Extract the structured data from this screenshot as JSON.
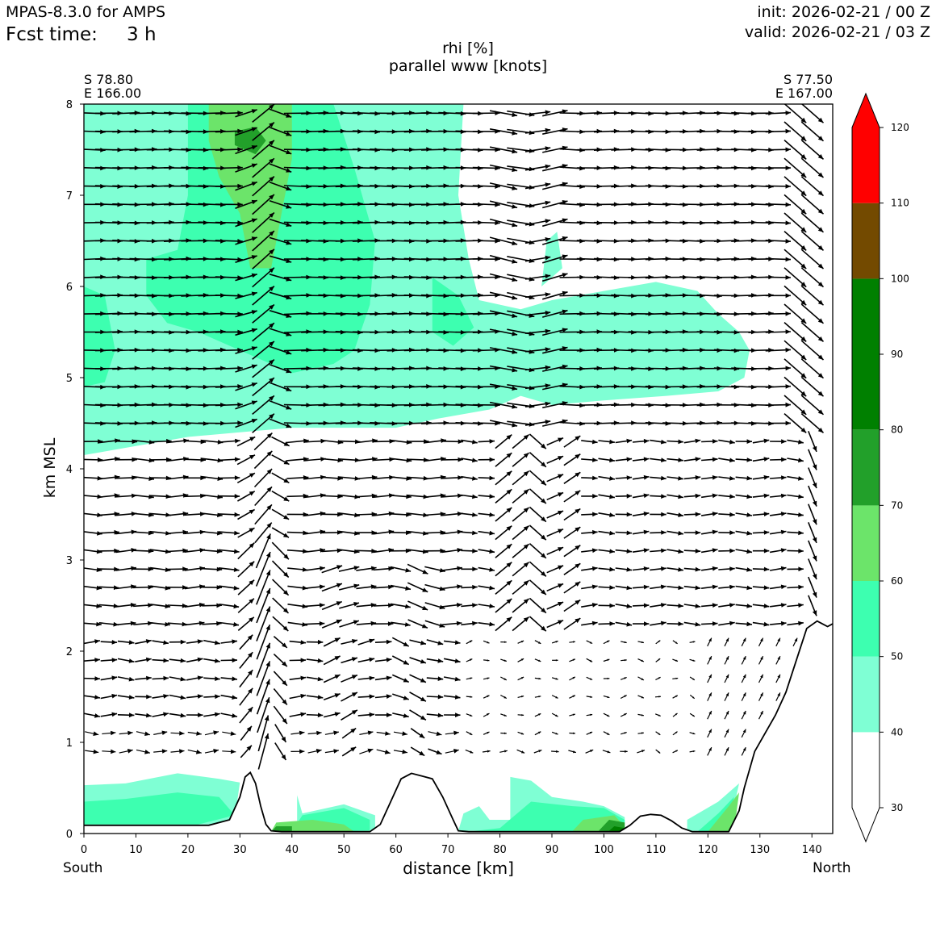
{
  "header": {
    "model": "MPAS-8.3.0 for AMPS",
    "fcst_label": "Fcst time:",
    "fcst_value": "3 h",
    "init": "init: 2026-02-21 / 00 Z",
    "valid": "valid: 2026-02-21 / 03 Z"
  },
  "chart_data": {
    "type": "heatmap",
    "title": "rhi [%]",
    "subtitle": "parallel www [knots]",
    "xlabel": "distance [km]",
    "ylabel": "km MSL",
    "xlim": [
      0,
      144
    ],
    "ylim": [
      0,
      8
    ],
    "x_ticks": [
      0,
      10,
      20,
      30,
      40,
      50,
      60,
      70,
      80,
      90,
      100,
      110,
      120,
      130,
      140
    ],
    "y_ticks": [
      0,
      1,
      2,
      3,
      4,
      5,
      6,
      7,
      8
    ],
    "endpoints": {
      "left": [
        "S 78.80",
        "E 166.00"
      ],
      "right": [
        "S 77.50",
        "E 167.00"
      ],
      "left_dir": "South",
      "right_dir": "North"
    },
    "colorbar": {
      "ticks": [
        30,
        40,
        50,
        60,
        70,
        80,
        90,
        100,
        110,
        120
      ],
      "bins": [
        {
          "from": 30,
          "to": 40,
          "color": "#ffffff"
        },
        {
          "from": 40,
          "to": 50,
          "color": "#7fffd4"
        },
        {
          "from": 50,
          "to": 60,
          "color": "#3dffb0"
        },
        {
          "from": 60,
          "to": 70,
          "color": "#6ce46a"
        },
        {
          "from": 70,
          "to": 80,
          "color": "#22a02a"
        },
        {
          "from": 80,
          "to": 100,
          "color": "#008000"
        },
        {
          "from": 100,
          "to": 110,
          "color": "#734a00"
        },
        {
          "from": 110,
          "to": 120,
          "color": "#ff0000"
        }
      ],
      "extend": "both",
      "under_color": "#ffffff",
      "over_color": "#ff0000"
    },
    "terrain": [
      [
        0,
        0.09
      ],
      [
        24,
        0.09
      ],
      [
        28,
        0.15
      ],
      [
        30,
        0.4
      ],
      [
        31,
        0.62
      ],
      [
        32,
        0.67
      ],
      [
        33,
        0.55
      ],
      [
        34,
        0.3
      ],
      [
        35,
        0.1
      ],
      [
        36,
        0.03
      ],
      [
        38,
        0.02
      ],
      [
        55,
        0.02
      ],
      [
        57,
        0.1
      ],
      [
        59,
        0.35
      ],
      [
        61,
        0.6
      ],
      [
        63,
        0.66
      ],
      [
        65,
        0.63
      ],
      [
        67,
        0.6
      ],
      [
        69,
        0.4
      ],
      [
        71,
        0.15
      ],
      [
        72,
        0.03
      ],
      [
        74,
        0.02
      ],
      [
        103,
        0.02
      ],
      [
        105,
        0.09
      ],
      [
        107,
        0.19
      ],
      [
        109,
        0.21
      ],
      [
        111,
        0.2
      ],
      [
        113,
        0.14
      ],
      [
        115,
        0.06
      ],
      [
        117,
        0.02
      ],
      [
        124,
        0.02
      ],
      [
        126,
        0.25
      ],
      [
        127,
        0.5
      ],
      [
        129,
        0.9
      ],
      [
        131,
        1.1
      ],
      [
        133,
        1.3
      ],
      [
        135,
        1.55
      ],
      [
        137,
        1.9
      ],
      [
        139,
        2.25
      ],
      [
        141,
        2.33
      ],
      [
        143,
        2.27
      ],
      [
        144,
        2.3
      ]
    ],
    "rhi_regions": [
      {
        "level": 40,
        "color": "#7fffd4",
        "polygon": [
          [
            0,
            8
          ],
          [
            73,
            8
          ],
          [
            72,
            7
          ],
          [
            74,
            6.3
          ],
          [
            76,
            5.85
          ],
          [
            84,
            5.75
          ],
          [
            90,
            5.85
          ],
          [
            100,
            5.95
          ],
          [
            110,
            6.05
          ],
          [
            118,
            5.95
          ],
          [
            122,
            5.7
          ],
          [
            126,
            5.5
          ],
          [
            128,
            5.3
          ],
          [
            127,
            5.0
          ],
          [
            122,
            4.85
          ],
          [
            112,
            4.8
          ],
          [
            100,
            4.75
          ],
          [
            90,
            4.7
          ],
          [
            84,
            4.8
          ],
          [
            78,
            4.65
          ],
          [
            68,
            4.55
          ],
          [
            60,
            4.45
          ],
          [
            50,
            4.45
          ],
          [
            40,
            4.45
          ],
          [
            30,
            4.4
          ],
          [
            20,
            4.35
          ],
          [
            10,
            4.25
          ],
          [
            0,
            4.15
          ]
        ]
      },
      {
        "level": 40,
        "color": "#7fffd4",
        "polygon": [
          [
            89,
            6.5
          ],
          [
            91,
            6.6
          ],
          [
            92,
            6.2
          ],
          [
            88,
            6.0
          ]
        ]
      },
      {
        "level": 40,
        "color": "#7fffd4",
        "polygon": [
          [
            0,
            0.1
          ],
          [
            0,
            0.53
          ],
          [
            8,
            0.55
          ],
          [
            18,
            0.66
          ],
          [
            26,
            0.6
          ],
          [
            30,
            0.56
          ],
          [
            29,
            0.16
          ],
          [
            24,
            0.1
          ]
        ]
      },
      {
        "level": 40,
        "color": "#7fffd4",
        "polygon": [
          [
            41,
            0.02
          ],
          [
            41,
            0.42
          ],
          [
            42,
            0.22
          ],
          [
            50,
            0.32
          ],
          [
            56,
            0.2
          ],
          [
            56,
            0.04
          ]
        ]
      },
      {
        "level": 40,
        "color": "#7fffd4",
        "polygon": [
          [
            72,
            0.03
          ],
          [
            73,
            0.22
          ],
          [
            76,
            0.3
          ],
          [
            78,
            0.15
          ],
          [
            82,
            0.15
          ],
          [
            82,
            0.62
          ],
          [
            86,
            0.58
          ],
          [
            90,
            0.4
          ],
          [
            96,
            0.35
          ],
          [
            100,
            0.3
          ],
          [
            104,
            0.18
          ],
          [
            104,
            0.03
          ]
        ]
      },
      {
        "level": 40,
        "color": "#7fffd4",
        "polygon": [
          [
            116,
            0.03
          ],
          [
            116,
            0.15
          ],
          [
            122,
            0.35
          ],
          [
            126,
            0.55
          ],
          [
            124,
            0.03
          ]
        ]
      },
      {
        "level": 50,
        "color": "#3dffb0",
        "polygon": [
          [
            20,
            8
          ],
          [
            48,
            8
          ],
          [
            52,
            7.3
          ],
          [
            56,
            6.5
          ],
          [
            55,
            5.8
          ],
          [
            52,
            5.3
          ],
          [
            48,
            5.15
          ],
          [
            40,
            5.05
          ],
          [
            30,
            5.3
          ],
          [
            22,
            5.5
          ],
          [
            16,
            5.6
          ],
          [
            12,
            5.9
          ],
          [
            12,
            6.3
          ],
          [
            18,
            6.4
          ],
          [
            20,
            7.0
          ]
        ]
      },
      {
        "level": 50,
        "color": "#3dffb0",
        "polygon": [
          [
            0,
            6.0
          ],
          [
            4,
            5.9
          ],
          [
            6,
            5.3
          ],
          [
            4,
            4.95
          ],
          [
            0,
            4.9
          ]
        ]
      },
      {
        "level": 50,
        "color": "#3dffb0",
        "polygon": [
          [
            67,
            6.1
          ],
          [
            72,
            5.9
          ],
          [
            75,
            5.55
          ],
          [
            71,
            5.35
          ],
          [
            67,
            5.5
          ]
        ]
      },
      {
        "level": 50,
        "color": "#3dffb0",
        "polygon": [
          [
            0,
            0.1
          ],
          [
            0,
            0.35
          ],
          [
            8,
            0.38
          ],
          [
            18,
            0.45
          ],
          [
            26,
            0.4
          ],
          [
            29,
            0.2
          ],
          [
            22,
            0.1
          ]
        ]
      },
      {
        "level": 50,
        "color": "#3dffb0",
        "polygon": [
          [
            40,
            0.02
          ],
          [
            42,
            0.2
          ],
          [
            50,
            0.28
          ],
          [
            55,
            0.15
          ],
          [
            55,
            0.03
          ]
        ]
      },
      {
        "level": 50,
        "color": "#3dffb0",
        "polygon": [
          [
            74,
            0.02
          ],
          [
            80,
            0.06
          ],
          [
            86,
            0.35
          ],
          [
            94,
            0.3
          ],
          [
            100,
            0.28
          ],
          [
            104,
            0.15
          ],
          [
            104,
            0.02
          ]
        ]
      },
      {
        "level": 50,
        "color": "#3dffb0",
        "polygon": [
          [
            118,
            0.02
          ],
          [
            122,
            0.22
          ],
          [
            125,
            0.4
          ],
          [
            124,
            0.02
          ]
        ]
      },
      {
        "level": 60,
        "color": "#6ce46a",
        "polygon": [
          [
            24,
            8
          ],
          [
            40,
            8
          ],
          [
            40,
            7.4
          ],
          [
            38,
            6.8
          ],
          [
            36,
            6.2
          ],
          [
            32,
            6.2
          ],
          [
            30,
            6.8
          ],
          [
            26,
            7.2
          ],
          [
            24,
            7.6
          ]
        ]
      },
      {
        "level": 60,
        "color": "#6ce46a",
        "polygon": [
          [
            36,
            0.02
          ],
          [
            37,
            0.12
          ],
          [
            44,
            0.15
          ],
          [
            50,
            0.1
          ],
          [
            52,
            0.02
          ]
        ]
      },
      {
        "level": 60,
        "color": "#6ce46a",
        "polygon": [
          [
            94,
            0.03
          ],
          [
            96,
            0.15
          ],
          [
            102,
            0.2
          ],
          [
            104,
            0.08
          ],
          [
            104,
            0.02
          ]
        ]
      },
      {
        "level": 60,
        "color": "#6ce46a",
        "polygon": [
          [
            120,
            0.02
          ],
          [
            124,
            0.3
          ],
          [
            126,
            0.45
          ],
          [
            125,
            0.02
          ]
        ]
      },
      {
        "level": 70,
        "color": "#22a02a",
        "polygon": [
          [
            29,
            7.7
          ],
          [
            33,
            7.75
          ],
          [
            35,
            7.6
          ],
          [
            33,
            7.45
          ],
          [
            29,
            7.55
          ]
        ]
      },
      {
        "level": 70,
        "color": "#22a02a",
        "polygon": [
          [
            36,
            0.02
          ],
          [
            37,
            0.08
          ],
          [
            40,
            0.08
          ],
          [
            40,
            0.02
          ]
        ]
      },
      {
        "level": 70,
        "color": "#22a02a",
        "polygon": [
          [
            99,
            0.03
          ],
          [
            101,
            0.15
          ],
          [
            104,
            0.12
          ],
          [
            104,
            0.02
          ]
        ]
      },
      {
        "level": 80,
        "color": "#008000",
        "polygon": [
          [
            101,
            0.03
          ],
          [
            102,
            0.08
          ],
          [
            104,
            0.06
          ],
          [
            104,
            0.02
          ]
        ]
      }
    ]
  }
}
